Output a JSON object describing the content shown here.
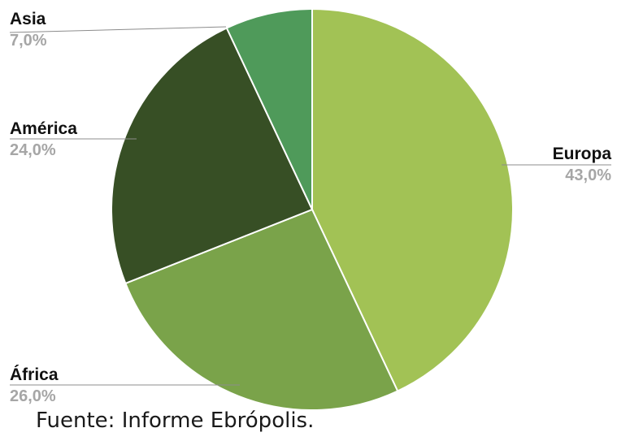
{
  "chart_data": {
    "type": "pie",
    "slices": [
      {
        "label": "Europa",
        "value": 43.0,
        "value_label": "43,0%",
        "color": "#a2c255"
      },
      {
        "label": "África",
        "value": 26.0,
        "value_label": "26,0%",
        "color": "#7aa34a"
      },
      {
        "label": "América",
        "value": 24.0,
        "value_label": "24,0%",
        "color": "#374f25"
      },
      {
        "label": "Asia",
        "value": 7.0,
        "value_label": "7,0%",
        "color": "#4f9a5a"
      }
    ],
    "start": "12 o'clock",
    "direction": "clockwise"
  },
  "source": "Fuente: Informe Ebrópolis."
}
